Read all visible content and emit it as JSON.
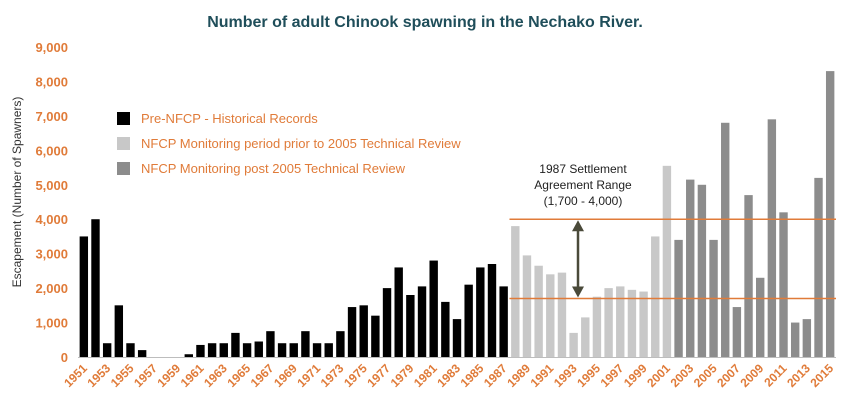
{
  "chart_data": {
    "type": "bar",
    "title": "Number of adult Chinook spawning in the Nechako River.",
    "xlabel": "",
    "ylabel": "Escapement (Number of Spawners)",
    "ylim": [
      0,
      9000
    ],
    "yticks": [
      "0",
      "1,000",
      "2,000",
      "3,000",
      "4,000",
      "5,000",
      "6,000",
      "7,000",
      "8,000",
      "9,000"
    ],
    "grid": false,
    "legend_position": "top-left",
    "colors": {
      "historical": "#000000",
      "prior_2005": "#c8c8c8",
      "post_2005": "#8c8c8c",
      "range_line": "#e07b39",
      "arrow": "#4a4a3a",
      "title": "#1f4e5a",
      "axis_text": "#e07b39"
    },
    "series": [
      {
        "name": "Pre-NFCP - Historical Records",
        "key": "historical"
      },
      {
        "name": "NFCP Monitoring period prior to 2005 Technical Review",
        "key": "prior_2005"
      },
      {
        "name": "NFCP Monitoring post 2005 Technical Review",
        "key": "post_2005"
      }
    ],
    "x": [
      1951,
      1952,
      1953,
      1954,
      1955,
      1956,
      1957,
      1958,
      1959,
      1960,
      1961,
      1962,
      1963,
      1964,
      1965,
      1966,
      1967,
      1968,
      1969,
      1970,
      1971,
      1972,
      1973,
      1974,
      1975,
      1976,
      1977,
      1978,
      1979,
      1980,
      1981,
      1982,
      1983,
      1984,
      1985,
      1986,
      1987,
      1988,
      1989,
      1990,
      1991,
      1992,
      1993,
      1994,
      1995,
      1996,
      1997,
      1998,
      1999,
      2000,
      2001,
      2002,
      2003,
      2004,
      2005,
      2006,
      2007,
      2008,
      2009,
      2010,
      2011,
      2012,
      2013,
      2014,
      2015
    ],
    "values": [
      3500,
      4000,
      400,
      1500,
      400,
      200,
      0,
      0,
      0,
      80,
      350,
      400,
      400,
      700,
      400,
      450,
      750,
      400,
      400,
      750,
      400,
      400,
      750,
      1450,
      1500,
      1200,
      2000,
      2600,
      1800,
      2050,
      2800,
      1600,
      1100,
      2100,
      2600,
      2700,
      2050,
      3800,
      2950,
      2650,
      2400,
      2450,
      700,
      1150,
      1750,
      2000,
      2050,
      1950,
      1900,
      3500,
      5550,
      3400,
      5150,
      5000,
      3400,
      6800,
      1450,
      4700,
      2300,
      6900,
      4200,
      1000,
      1100,
      5200,
      8300
    ],
    "series_by_bar": [
      "historical",
      "historical",
      "historical",
      "historical",
      "historical",
      "historical",
      "historical",
      "historical",
      "historical",
      "historical",
      "historical",
      "historical",
      "historical",
      "historical",
      "historical",
      "historical",
      "historical",
      "historical",
      "historical",
      "historical",
      "historical",
      "historical",
      "historical",
      "historical",
      "historical",
      "historical",
      "historical",
      "historical",
      "historical",
      "historical",
      "historical",
      "historical",
      "historical",
      "historical",
      "historical",
      "historical",
      "historical",
      "prior_2005",
      "prior_2005",
      "prior_2005",
      "prior_2005",
      "prior_2005",
      "prior_2005",
      "prior_2005",
      "prior_2005",
      "prior_2005",
      "prior_2005",
      "prior_2005",
      "prior_2005",
      "prior_2005",
      "prior_2005",
      "post_2005",
      "post_2005",
      "post_2005",
      "post_2005",
      "post_2005",
      "post_2005",
      "post_2005",
      "post_2005",
      "post_2005",
      "post_2005",
      "post_2005",
      "post_2005",
      "post_2005",
      "post_2005"
    ],
    "x_tick_labels": [
      "1951",
      "1953",
      "1955",
      "1957",
      "1959",
      "1961",
      "1963",
      "1965",
      "1967",
      "1969",
      "1971",
      "1973",
      "1975",
      "1977",
      "1979",
      "1981",
      "1983",
      "1985",
      "1987",
      "1989",
      "1991",
      "1993",
      "1995",
      "1997",
      "1999",
      "2001",
      "2003",
      "2005",
      "2007",
      "2009",
      "2011",
      "2013",
      "2015"
    ],
    "reference_range": {
      "low": 1700,
      "high": 4000,
      "start_year": 1988
    },
    "annotation": [
      "1987 Settlement",
      "Agreement Range",
      "(1,700 - 4,000)"
    ]
  }
}
